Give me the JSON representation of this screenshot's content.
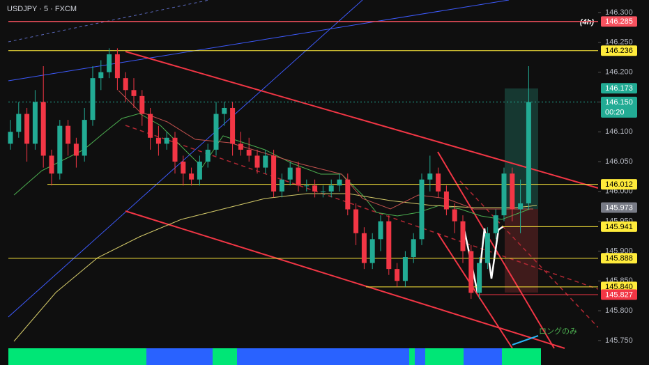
{
  "chart_data": {
    "type": "candlestick",
    "title": "USDJPY · 5 · FXCM",
    "timeframe_label": "(4h)",
    "annotation": "ロングのみ",
    "countdown": "00:20",
    "up_color": "#22ab94",
    "down_color": "#f23645",
    "ylim": [
      145.709,
      146.321
    ],
    "yticks": [
      {
        "value": 145.75,
        "label": "145.750"
      },
      {
        "value": 145.8,
        "label": "145.800"
      },
      {
        "value": 145.85,
        "label": "145.850"
      },
      {
        "value": 145.9,
        "label": "145.900"
      },
      {
        "value": 145.95,
        "label": "145.950"
      },
      {
        "value": 146.0,
        "label": "146.000"
      },
      {
        "value": 146.05,
        "label": "146.050"
      },
      {
        "value": 146.1,
        "label": "146.100"
      },
      {
        "value": 146.15,
        "label": "146.150"
      },
      {
        "value": 146.2,
        "label": "146.200"
      },
      {
        "value": 146.25,
        "label": "146.250"
      },
      {
        "value": 146.3,
        "label": "146.300"
      }
    ],
    "open": [
      146.08,
      146.1,
      146.13,
      146.08,
      146.15,
      146.06,
      146.03,
      146.11,
      146.08,
      146.06,
      146.12,
      146.19,
      146.2,
      146.23,
      146.19,
      146.17,
      146.16,
      146.13,
      146.09,
      146.08,
      146.09,
      146.05,
      146.03,
      146.02,
      146.05,
      146.07,
      146.13,
      146.14,
      146.08,
      146.07,
      146.06,
      146.04,
      146.06,
      146.0,
      146.02,
      146.04,
      146.01,
      146.01,
      146.0,
      146.0,
      146.01,
      146.02,
      145.97,
      145.93,
      145.88,
      145.92,
      145.95,
      145.87,
      145.85,
      145.89,
      145.92,
      146.02,
      146.03,
      146.0,
      145.97,
      145.95,
      145.9,
      145.83,
      145.88,
      145.93,
      145.96,
      146.03,
      145.97,
      145.98
    ],
    "high": [
      146.12,
      146.15,
      146.14,
      146.17,
      146.21,
      146.07,
      146.12,
      146.12,
      146.09,
      146.14,
      146.21,
      146.22,
      146.24,
      146.24,
      146.2,
      146.19,
      146.17,
      146.14,
      146.11,
      146.1,
      146.1,
      146.06,
      146.04,
      146.06,
      146.08,
      146.15,
      146.15,
      146.15,
      146.1,
      146.09,
      146.07,
      146.07,
      146.07,
      146.03,
      146.05,
      146.05,
      146.02,
      146.02,
      146.01,
      146.02,
      146.03,
      146.03,
      145.98,
      145.94,
      145.93,
      145.96,
      145.96,
      145.88,
      145.9,
      145.93,
      146.03,
      146.06,
      146.04,
      146.01,
      145.98,
      145.96,
      145.91,
      145.89,
      145.94,
      145.97,
      146.04,
      146.04,
      146.02,
      146.21
    ],
    "low": [
      146.07,
      146.09,
      146.05,
      146.07,
      146.04,
      146.01,
      146.02,
      146.06,
      146.04,
      146.05,
      146.11,
      146.17,
      146.19,
      146.17,
      146.15,
      146.14,
      146.11,
      146.07,
      146.06,
      146.07,
      146.03,
      146.01,
      146.01,
      146.01,
      146.04,
      146.06,
      146.11,
      146.06,
      146.06,
      146.05,
      146.03,
      146.03,
      145.99,
      145.99,
      146.01,
      146.0,
      146.0,
      145.99,
      145.99,
      145.99,
      146.0,
      145.96,
      145.91,
      145.87,
      145.87,
      145.9,
      145.86,
      145.84,
      145.84,
      145.88,
      145.91,
      146.0,
      145.99,
      145.96,
      145.93,
      145.88,
      145.82,
      145.82,
      145.87,
      145.92,
      145.95,
      145.95,
      145.93,
      145.97
    ],
    "close": [
      146.1,
      146.13,
      146.08,
      146.15,
      146.06,
      146.03,
      146.11,
      146.08,
      146.06,
      146.12,
      146.19,
      146.2,
      146.23,
      146.19,
      146.17,
      146.16,
      146.13,
      146.09,
      146.08,
      146.09,
      146.05,
      146.03,
      146.02,
      146.05,
      146.07,
      146.13,
      146.14,
      146.08,
      146.07,
      146.06,
      146.04,
      146.06,
      146.0,
      146.02,
      146.04,
      146.01,
      146.01,
      146.0,
      146.0,
      146.01,
      146.02,
      145.97,
      145.93,
      145.88,
      145.92,
      145.95,
      145.87,
      145.85,
      145.89,
      145.92,
      146.02,
      146.03,
      146.0,
      145.97,
      145.95,
      145.9,
      145.83,
      145.88,
      145.93,
      145.96,
      146.03,
      145.97,
      145.98,
      146.15
    ],
    "levels": [
      {
        "value": 146.285,
        "label": "146.285",
        "color": "#f7525f"
      },
      {
        "value": 146.236,
        "label": "146.236",
        "color": "#ffeb3b"
      },
      {
        "value": 146.173,
        "label": "146.173",
        "color": "#22ab94"
      },
      {
        "value": 146.15,
        "label": "146.150",
        "color": "#22ab94"
      },
      {
        "value": 146.012,
        "label": "146.012",
        "color": "#ffeb3b"
      },
      {
        "value": 145.973,
        "label": "145.973",
        "color": "#787b86"
      },
      {
        "value": 145.941,
        "label": "145.941",
        "color": "#ffeb3b"
      },
      {
        "value": 145.888,
        "label": "145.888",
        "color": "#ffeb3b"
      },
      {
        "value": 145.84,
        "label": "145.840",
        "color": "#ffeb3b"
      },
      {
        "value": 145.827,
        "label": "145.827",
        "color": "#f23645"
      }
    ]
  }
}
